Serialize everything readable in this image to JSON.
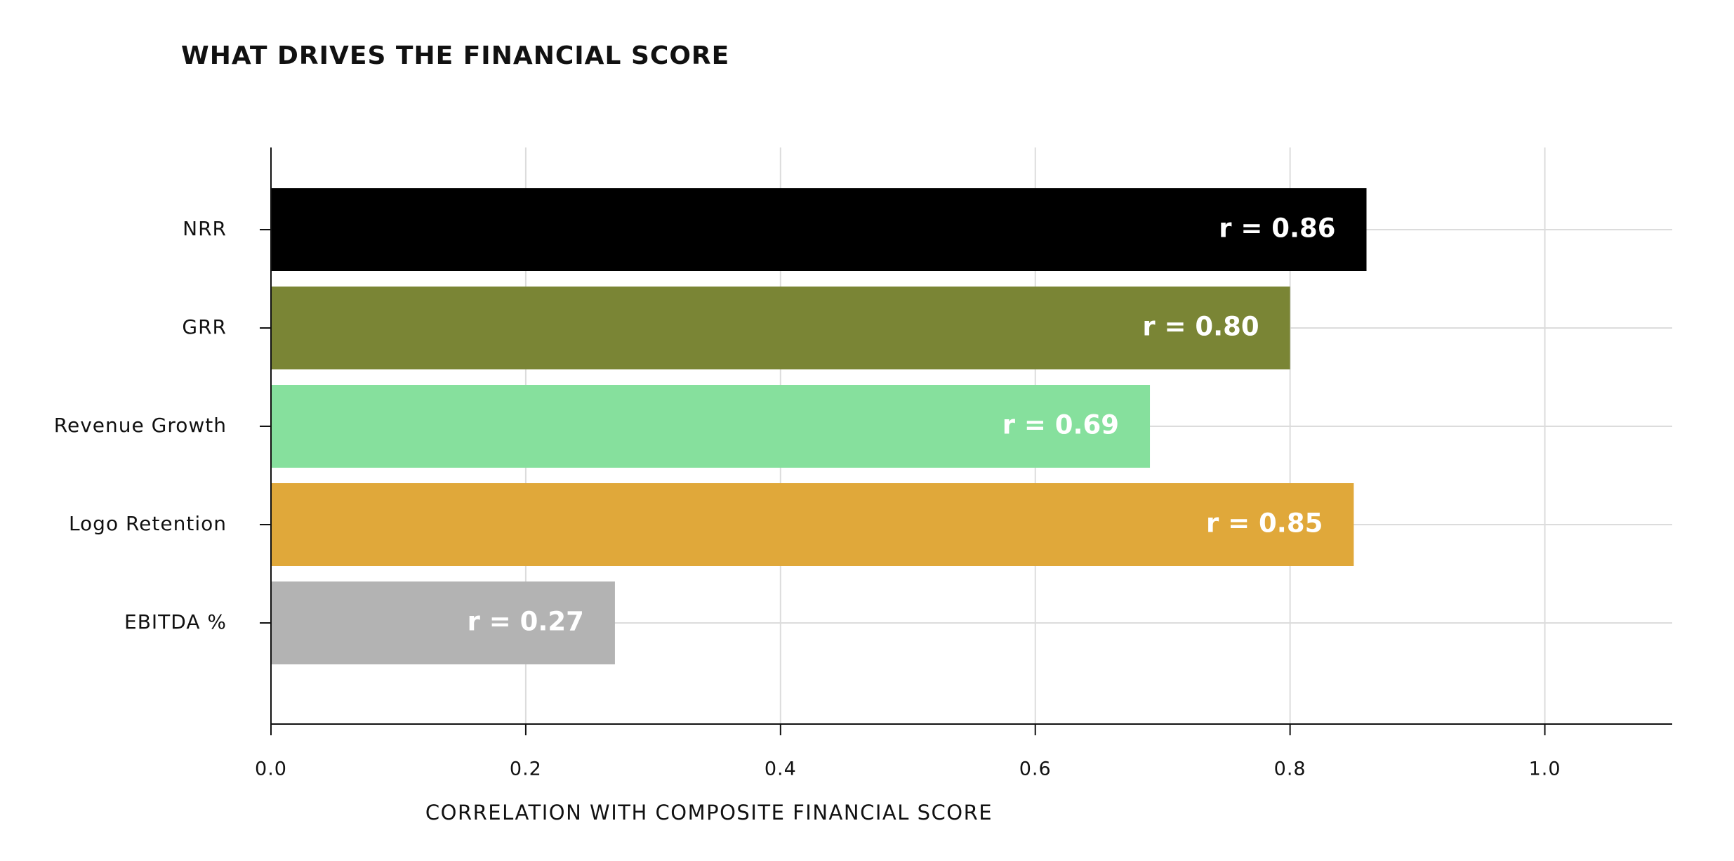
{
  "chart_data": {
    "type": "bar",
    "orientation": "horizontal",
    "title": "WHAT DRIVES THE FINANCIAL SCORE",
    "x_label": "CORRELATION WITH COMPOSITE FINANCIAL SCORE",
    "categories": [
      "NRR",
      "GRR",
      "Revenue Growth",
      "Logo Retention",
      "EBITDA %"
    ],
    "values": [
      0.86,
      0.8,
      0.69,
      0.85,
      0.27
    ],
    "value_labels": [
      "r = 0.86",
      "r = 0.80",
      "r = 0.69",
      "r = 0.85",
      "r = 0.27"
    ],
    "colors": [
      "#000000",
      "#7a8535",
      "#86e09d",
      "#e0a83a",
      "#b3b3b3"
    ],
    "xlim": [
      0,
      1.1
    ],
    "xticks": [
      {
        "value": 0,
        "label": "0.0"
      },
      0.2,
      0.4,
      0.6,
      0.8,
      {
        "value": 1,
        "label": "1.0"
      }
    ],
    "grid": true
  }
}
